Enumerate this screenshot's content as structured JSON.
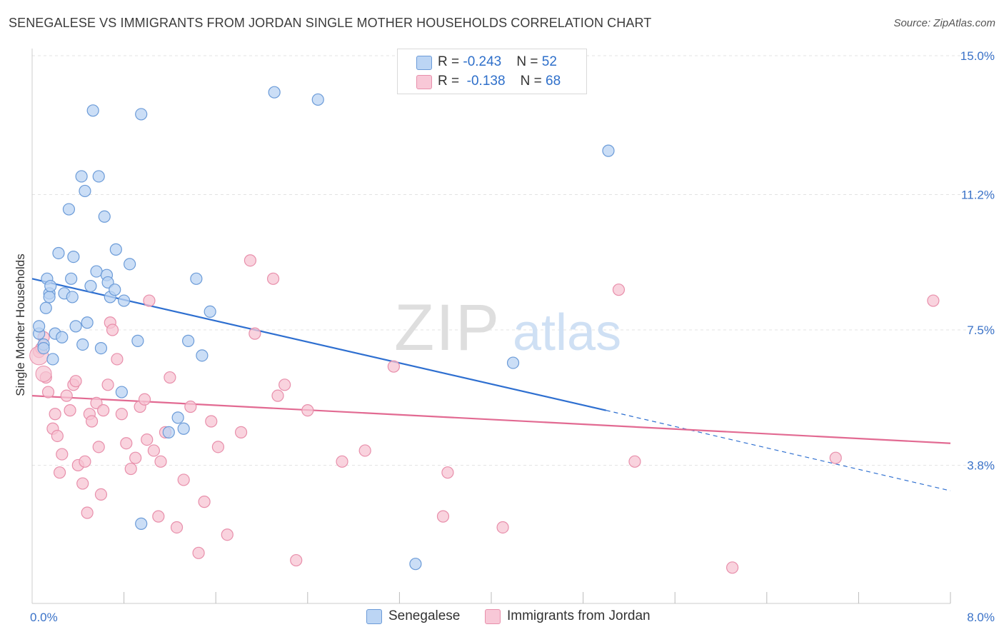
{
  "header": {
    "title": "SENEGALESE VS IMMIGRANTS FROM JORDAN SINGLE MOTHER HOUSEHOLDS CORRELATION CHART",
    "source": "Source: ZipAtlas.com"
  },
  "watermark": {
    "zip": "ZIP",
    "atlas": "atlas"
  },
  "legend": {
    "rows": [
      {
        "r_label": "R = ",
        "r_value": "-0.243",
        "n_label": "N = ",
        "n_value": "52"
      },
      {
        "r_label": "R = ",
        "r_value": " -0.138",
        "n_label": "N = ",
        "n_value": "68"
      }
    ]
  },
  "bottom_legend": {
    "series1": "Senegalese",
    "series2": "Immigrants from Jordan"
  },
  "colors": {
    "blue_fill": "#b9d3f3",
    "blue_stroke": "#6b9bd8",
    "blue_line": "#2e6fd0",
    "pink_fill": "#f7c4d3",
    "pink_stroke": "#e88fab",
    "pink_line": "#e26a92",
    "axis_label": "#3a72c8",
    "grid": "#e3e3e3"
  },
  "chart_data": {
    "type": "scatter",
    "title": "SENEGALESE VS IMMIGRANTS FROM JORDAN SINGLE MOTHER HOUSEHOLDS CORRELATION CHART",
    "xlabel": "",
    "ylabel": "Single Mother Households",
    "xlim": [
      0,
      8.0
    ],
    "ylim": [
      0,
      15.6
    ],
    "x_tick_labels": [
      {
        "v": 0,
        "label": "0.0%"
      },
      {
        "v": 8.0,
        "label": "8.0%"
      }
    ],
    "y_tick_labels": [
      {
        "v": 3.8,
        "label": "3.8%"
      },
      {
        "v": 7.5,
        "label": "7.5%"
      },
      {
        "v": 11.2,
        "label": "11.2%"
      },
      {
        "v": 15.0,
        "label": "15.0%"
      }
    ],
    "x_minor_ticks": [
      0.8,
      1.6,
      2.4,
      3.2,
      4.0,
      4.8,
      5.6,
      6.4,
      7.2,
      8.0
    ],
    "grid": true,
    "series": [
      {
        "name": "Senegalese",
        "r": -0.243,
        "n": 52,
        "points": [
          [
            0.06,
            7.4
          ],
          [
            0.06,
            7.6
          ],
          [
            0.1,
            7.1
          ],
          [
            0.1,
            7.0
          ],
          [
            0.12,
            8.1
          ],
          [
            0.13,
            8.9
          ],
          [
            0.15,
            8.5
          ],
          [
            0.15,
            8.4
          ],
          [
            0.16,
            8.7
          ],
          [
            0.18,
            6.7
          ],
          [
            0.2,
            7.4
          ],
          [
            0.23,
            9.6
          ],
          [
            0.26,
            7.3
          ],
          [
            0.28,
            8.5
          ],
          [
            0.32,
            10.8
          ],
          [
            0.34,
            8.9
          ],
          [
            0.35,
            8.4
          ],
          [
            0.36,
            9.5
          ],
          [
            0.38,
            7.6
          ],
          [
            0.43,
            11.7
          ],
          [
            0.44,
            7.1
          ],
          [
            0.46,
            11.3
          ],
          [
            0.48,
            7.7
          ],
          [
            0.51,
            8.7
          ],
          [
            0.53,
            13.5
          ],
          [
            0.56,
            9.1
          ],
          [
            0.58,
            11.7
          ],
          [
            0.6,
            7.0
          ],
          [
            0.63,
            10.6
          ],
          [
            0.65,
            9.0
          ],
          [
            0.66,
            8.8
          ],
          [
            0.68,
            8.4
          ],
          [
            0.72,
            8.6
          ],
          [
            0.73,
            9.7
          ],
          [
            0.78,
            5.8
          ],
          [
            0.8,
            8.3
          ],
          [
            0.85,
            9.3
          ],
          [
            0.92,
            7.2
          ],
          [
            0.95,
            2.2
          ],
          [
            0.95,
            13.4
          ],
          [
            1.19,
            4.7
          ],
          [
            1.27,
            5.1
          ],
          [
            1.32,
            4.8
          ],
          [
            1.36,
            7.2
          ],
          [
            1.43,
            8.9
          ],
          [
            1.48,
            6.8
          ],
          [
            1.55,
            8.0
          ],
          [
            2.11,
            14.0
          ],
          [
            2.49,
            13.8
          ],
          [
            3.34,
            1.1
          ],
          [
            4.19,
            6.6
          ],
          [
            5.02,
            12.4
          ]
        ]
      },
      {
        "name": "Immigrants from Jordan",
        "r": -0.138,
        "n": 68,
        "points": [
          [
            0.06,
            6.9
          ],
          [
            0.08,
            7.0
          ],
          [
            0.1,
            7.3
          ],
          [
            0.12,
            6.2
          ],
          [
            0.14,
            5.8
          ],
          [
            0.18,
            4.8
          ],
          [
            0.2,
            5.2
          ],
          [
            0.22,
            4.6
          ],
          [
            0.24,
            3.6
          ],
          [
            0.26,
            4.1
          ],
          [
            0.3,
            5.7
          ],
          [
            0.33,
            5.3
          ],
          [
            0.36,
            6.0
          ],
          [
            0.38,
            6.1
          ],
          [
            0.4,
            3.8
          ],
          [
            0.44,
            3.3
          ],
          [
            0.46,
            3.9
          ],
          [
            0.48,
            2.5
          ],
          [
            0.5,
            5.2
          ],
          [
            0.52,
            5.0
          ],
          [
            0.56,
            5.5
          ],
          [
            0.58,
            4.3
          ],
          [
            0.6,
            3.0
          ],
          [
            0.62,
            5.3
          ],
          [
            0.66,
            6.0
          ],
          [
            0.68,
            7.7
          ],
          [
            0.7,
            7.5
          ],
          [
            0.74,
            6.7
          ],
          [
            0.78,
            5.2
          ],
          [
            0.82,
            4.4
          ],
          [
            0.86,
            3.7
          ],
          [
            0.9,
            4.0
          ],
          [
            0.94,
            5.4
          ],
          [
            0.98,
            5.6
          ],
          [
            1.0,
            4.5
          ],
          [
            1.02,
            8.3
          ],
          [
            1.06,
            4.2
          ],
          [
            1.1,
            2.4
          ],
          [
            1.12,
            3.9
          ],
          [
            1.16,
            4.7
          ],
          [
            1.2,
            6.2
          ],
          [
            1.26,
            2.1
          ],
          [
            1.32,
            3.4
          ],
          [
            1.38,
            5.4
          ],
          [
            1.45,
            1.4
          ],
          [
            1.5,
            2.8
          ],
          [
            1.56,
            5.0
          ],
          [
            1.62,
            4.3
          ],
          [
            1.7,
            1.9
          ],
          [
            1.82,
            4.7
          ],
          [
            1.9,
            9.4
          ],
          [
            1.94,
            7.4
          ],
          [
            2.1,
            8.9
          ],
          [
            2.14,
            5.7
          ],
          [
            2.2,
            6.0
          ],
          [
            2.3,
            1.2
          ],
          [
            2.4,
            5.3
          ],
          [
            2.7,
            3.9
          ],
          [
            2.9,
            4.2
          ],
          [
            3.15,
            6.5
          ],
          [
            3.58,
            2.4
          ],
          [
            3.62,
            3.6
          ],
          [
            4.1,
            2.1
          ],
          [
            5.11,
            8.6
          ],
          [
            5.25,
            3.9
          ],
          [
            6.1,
            1.0
          ],
          [
            7.0,
            4.0
          ],
          [
            7.85,
            8.3
          ]
        ]
      }
    ],
    "trendlines": [
      {
        "series": "Senegalese",
        "x0": 0.0,
        "y0": 8.9,
        "x1": 5.0,
        "y1": 5.3,
        "dashed_to_x": 8.0,
        "dashed_to_y": 3.1
      },
      {
        "series": "Immigrants from Jordan",
        "x0": 0.0,
        "y0": 5.7,
        "x1": 8.0,
        "y1": 4.4
      }
    ]
  }
}
